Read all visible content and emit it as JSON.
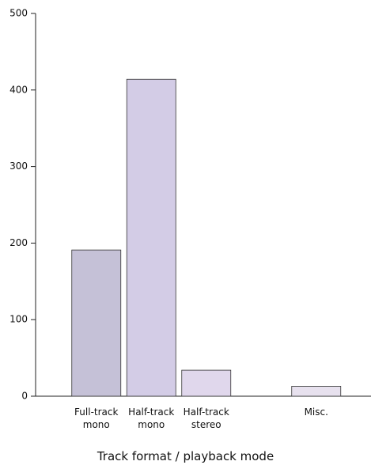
{
  "chart_data": {
    "type": "bar",
    "x_label": "Track format / playback mode",
    "categories": [
      "Full-track mono",
      "Half-track mono",
      "Half-track stereo",
      null,
      "Misc."
    ],
    "values": [
      191,
      414,
      34,
      null,
      13
    ],
    "colors": [
      "#c5c1d7",
      "#d3cce6",
      "#e0d7ec",
      null,
      "#e7e1ee"
    ],
    "ylim": [
      0,
      500
    ],
    "yticks": [
      0,
      100,
      200,
      300,
      400,
      500
    ]
  }
}
